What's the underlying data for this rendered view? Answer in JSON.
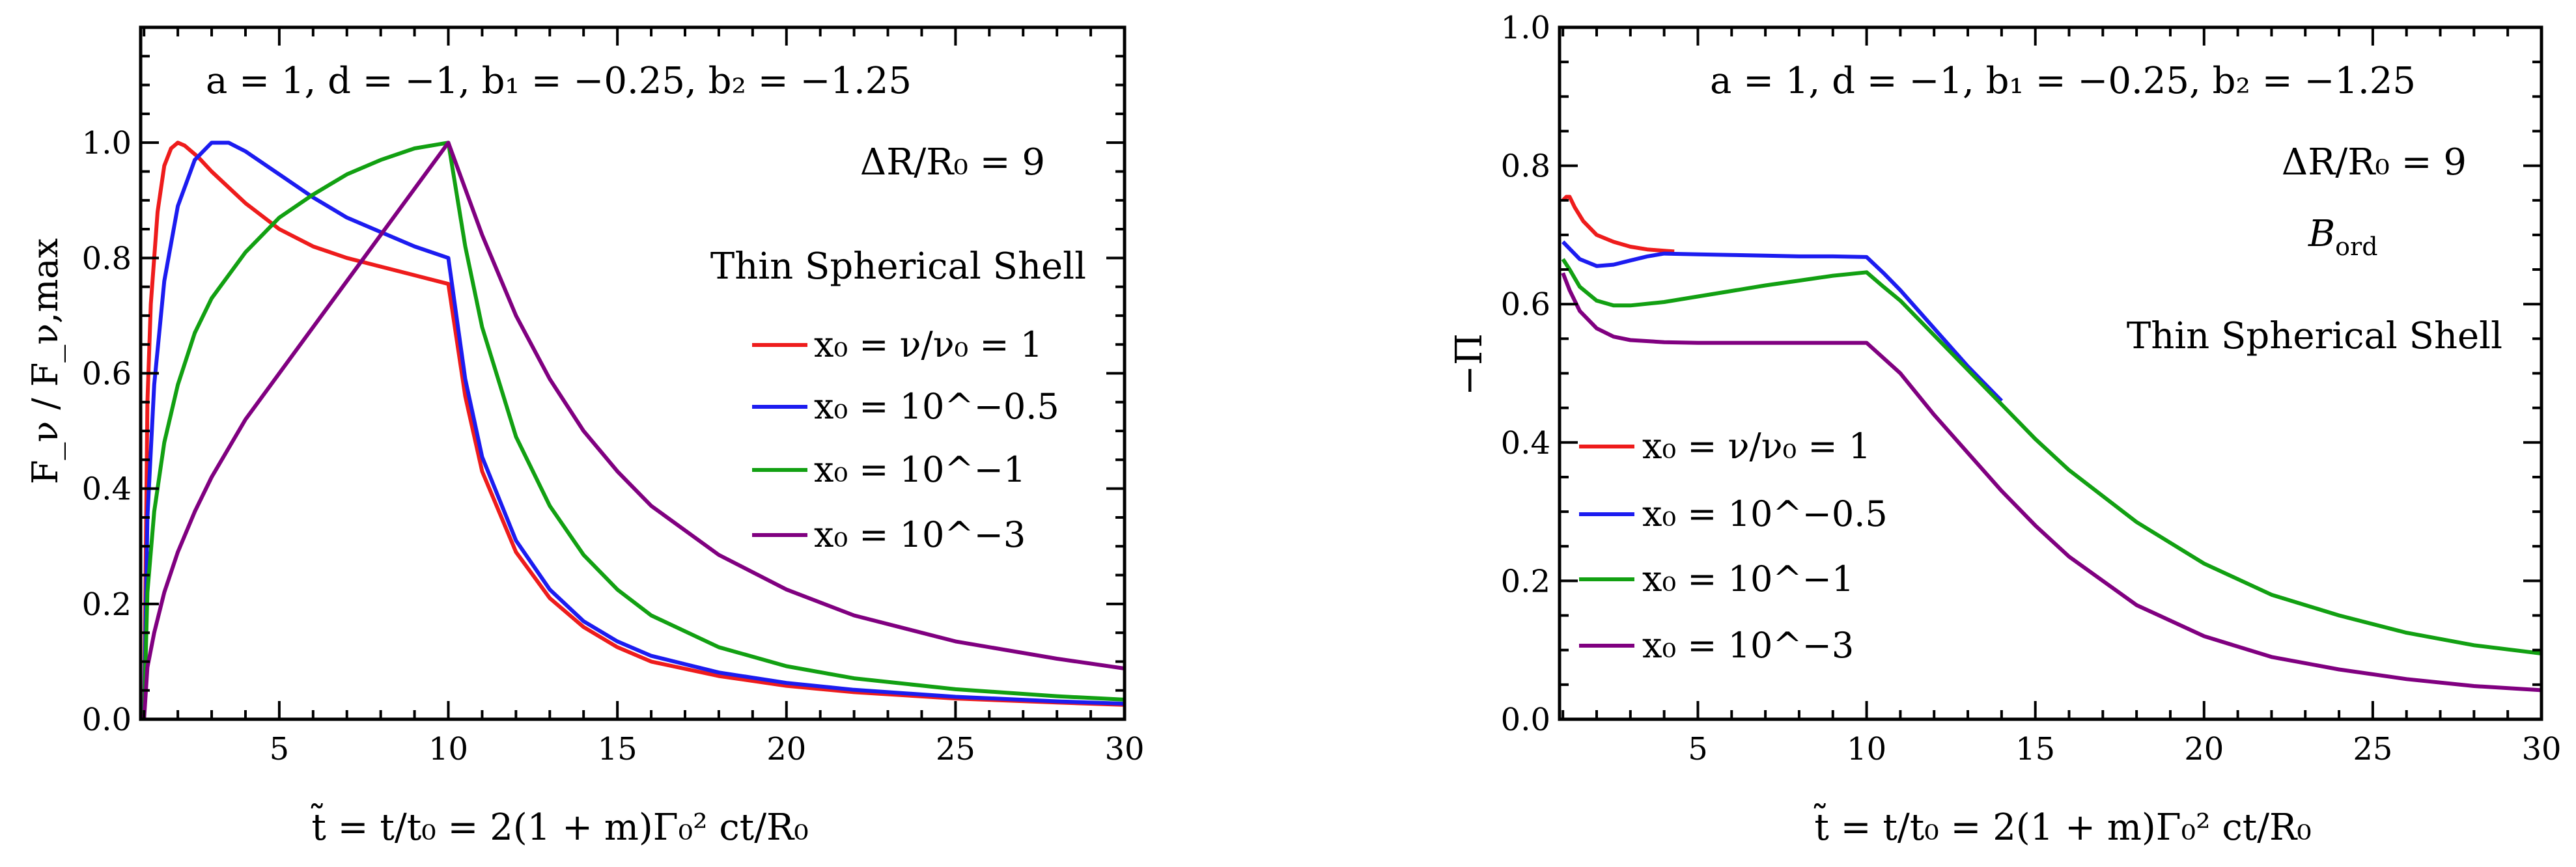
{
  "chart_data": [
    {
      "id": "left",
      "type": "line",
      "ylabel": "F_ν / F_ν,max",
      "xlabel": "t̃ = t/t₀ = 2(1 + m)Γ₀² ct/R₀",
      "xlim": [
        0.9,
        30
      ],
      "ylim": [
        0.0,
        1.2
      ],
      "x_ticks": [
        5,
        10,
        15,
        20,
        25,
        30
      ],
      "x_tick_labels": [
        "5",
        "10",
        "15",
        "20",
        "25",
        "30"
      ],
      "y_ticks": [
        0.0,
        0.2,
        0.4,
        0.6,
        0.8,
        1.0
      ],
      "y_tick_labels": [
        "0.0",
        "0.2",
        "0.4",
        "0.6",
        "0.8",
        "1.0"
      ],
      "annotations": {
        "params": "a = 1,  d = −1,  b₁ = −0.25,  b₂ = −1.25",
        "ratio": "ΔR/R₀ = 9",
        "shell": "Thin Spherical Shell"
      },
      "series": [
        {
          "name": "x₀ = ν/ν₀ = 1",
          "color": "#ee1c1c",
          "x": [
            1.0,
            1.1,
            1.2,
            1.4,
            1.6,
            1.8,
            2.0,
            2.2,
            2.6,
            3.0,
            4.0,
            5.0,
            6.0,
            7.0,
            8.0,
            9.0,
            10.0,
            10.5,
            11,
            12,
            13,
            14,
            15,
            16,
            18,
            20,
            22,
            25,
            28,
            30
          ],
          "y": [
            0.0,
            0.55,
            0.72,
            0.88,
            0.96,
            0.99,
            1.0,
            0.995,
            0.975,
            0.95,
            0.895,
            0.85,
            0.82,
            0.8,
            0.785,
            0.77,
            0.755,
            0.56,
            0.43,
            0.29,
            0.21,
            0.16,
            0.125,
            0.1,
            0.075,
            0.058,
            0.047,
            0.036,
            0.029,
            0.025
          ]
        },
        {
          "name": "x₀ = 10^−0.5",
          "color": "#1c1cf0",
          "x": [
            1.0,
            1.1,
            1.3,
            1.6,
            2.0,
            2.5,
            3.0,
            3.5,
            4.0,
            5.0,
            6.0,
            7.0,
            8.0,
            9.0,
            10.0,
            10.5,
            11,
            12,
            13,
            14,
            15,
            16,
            18,
            20,
            22,
            25,
            28,
            30
          ],
          "y": [
            0.0,
            0.35,
            0.58,
            0.76,
            0.89,
            0.97,
            1.0,
            1.0,
            0.985,
            0.945,
            0.905,
            0.87,
            0.845,
            0.82,
            0.8,
            0.59,
            0.455,
            0.31,
            0.225,
            0.17,
            0.135,
            0.11,
            0.081,
            0.063,
            0.051,
            0.039,
            0.031,
            0.027
          ]
        },
        {
          "name": "x₀ = 10^−1",
          "color": "#12a012",
          "x": [
            1.0,
            1.1,
            1.3,
            1.6,
            2.0,
            2.5,
            3.0,
            4.0,
            5.0,
            6.0,
            7.0,
            8.0,
            9.0,
            10.0,
            10.5,
            11,
            12,
            13,
            14,
            15,
            16,
            18,
            20,
            22,
            25,
            28,
            30
          ],
          "y": [
            0.0,
            0.22,
            0.36,
            0.48,
            0.58,
            0.67,
            0.73,
            0.81,
            0.87,
            0.91,
            0.945,
            0.97,
            0.99,
            1.0,
            0.82,
            0.68,
            0.49,
            0.37,
            0.285,
            0.225,
            0.18,
            0.125,
            0.092,
            0.071,
            0.052,
            0.04,
            0.034
          ]
        },
        {
          "name": "x₀ = 10^−3",
          "color": "#800080",
          "x": [
            1.0,
            1.1,
            1.3,
            1.6,
            2.0,
            2.5,
            3.0,
            4.0,
            5.0,
            6.0,
            7.0,
            8.0,
            9.0,
            10.0,
            11,
            12,
            13,
            14,
            15,
            16,
            18,
            20,
            22,
            25,
            28,
            30
          ],
          "y": [
            0.0,
            0.09,
            0.15,
            0.22,
            0.29,
            0.36,
            0.42,
            0.52,
            0.6,
            0.68,
            0.76,
            0.84,
            0.92,
            1.0,
            0.84,
            0.7,
            0.59,
            0.5,
            0.43,
            0.37,
            0.285,
            0.225,
            0.18,
            0.135,
            0.105,
            0.088
          ]
        }
      ]
    },
    {
      "id": "right",
      "type": "line",
      "ylabel": "−Π",
      "xlabel": "t̃ = t/t₀ = 2(1 + m)Γ₀² ct/R₀",
      "xlim": [
        0.9,
        30
      ],
      "ylim": [
        0.0,
        1.0
      ],
      "x_ticks": [
        5,
        10,
        15,
        20,
        25,
        30
      ],
      "x_tick_labels": [
        "5",
        "10",
        "15",
        "20",
        "25",
        "30"
      ],
      "y_ticks": [
        0.0,
        0.2,
        0.4,
        0.6,
        0.8,
        1.0
      ],
      "y_tick_labels": [
        "0.0",
        "0.2",
        "0.4",
        "0.6",
        "0.8",
        "1.0"
      ],
      "annotations": {
        "params": "a = 1,  d = −1,  b₁ = −0.25,  b₂ = −1.25",
        "ratio": "ΔR/R₀ = 9",
        "field": "B",
        "field_sub": "ord",
        "shell": "Thin Spherical Shell"
      },
      "series": [
        {
          "name": "x₀ = ν/ν₀ = 1",
          "color": "#ee1c1c",
          "x": [
            1.0,
            1.1,
            1.2,
            1.35,
            1.6,
            2.0,
            2.5,
            3.0,
            3.5,
            4.0,
            4.3
          ],
          "y": [
            0.75,
            0.755,
            0.755,
            0.74,
            0.72,
            0.7,
            0.69,
            0.683,
            0.679,
            0.677,
            0.676
          ]
        },
        {
          "name": "x₀ = 10^−0.5",
          "color": "#1c1cf0",
          "x": [
            1.0,
            1.2,
            1.5,
            2.0,
            2.5,
            3.0,
            3.5,
            4.0,
            5.0,
            6.0,
            7.0,
            8.0,
            9.0,
            10.0,
            10.5,
            11,
            12,
            13,
            13.5,
            14
          ],
          "y": [
            0.69,
            0.68,
            0.665,
            0.655,
            0.657,
            0.663,
            0.669,
            0.673,
            0.672,
            0.671,
            0.67,
            0.669,
            0.669,
            0.668,
            0.645,
            0.62,
            0.565,
            0.51,
            0.485,
            0.46
          ]
        },
        {
          "name": "x₀ = 10^−1",
          "color": "#12a012",
          "x": [
            1.0,
            1.2,
            1.5,
            2.0,
            2.5,
            3.0,
            4.0,
            5.0,
            6.0,
            7.0,
            8.0,
            9.0,
            10.0,
            10.5,
            11,
            12,
            13,
            14,
            15,
            16,
            18,
            20,
            22,
            24,
            26,
            28,
            30
          ],
          "y": [
            0.665,
            0.65,
            0.625,
            0.605,
            0.598,
            0.598,
            0.603,
            0.611,
            0.619,
            0.627,
            0.634,
            0.641,
            0.646,
            0.625,
            0.605,
            0.555,
            0.505,
            0.455,
            0.405,
            0.36,
            0.285,
            0.225,
            0.18,
            0.15,
            0.125,
            0.107,
            0.095
          ]
        },
        {
          "name": "x₀ = 10^−3",
          "color": "#800080",
          "x": [
            1.0,
            1.2,
            1.5,
            2.0,
            2.5,
            3.0,
            4.0,
            5.0,
            6.0,
            7.0,
            8.0,
            9.0,
            10.0,
            11,
            12,
            13,
            14,
            15,
            16,
            18,
            20,
            22,
            24,
            26,
            28,
            30
          ],
          "y": [
            0.645,
            0.62,
            0.59,
            0.565,
            0.553,
            0.548,
            0.545,
            0.544,
            0.544,
            0.544,
            0.544,
            0.544,
            0.544,
            0.5,
            0.44,
            0.385,
            0.33,
            0.28,
            0.235,
            0.165,
            0.12,
            0.09,
            0.072,
            0.058,
            0.048,
            0.042
          ]
        }
      ]
    }
  ]
}
